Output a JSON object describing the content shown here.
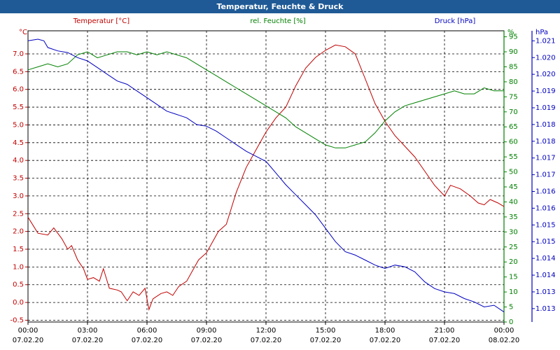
{
  "window": {
    "title": "Temperatur, Feuchte & Druck"
  },
  "colors": {
    "temperature": "#c00000",
    "humidity": "#008000",
    "pressure": "#0000c0",
    "axis": "#000000",
    "grid": "#000000"
  },
  "chart_data": {
    "type": "line",
    "title": "Temperatur, Feuchte & Druck",
    "x_ticks": [
      {
        "time": "00:00",
        "date": "07.02.20"
      },
      {
        "time": "03:00",
        "date": "07.02.20"
      },
      {
        "time": "06:00",
        "date": "07.02.20"
      },
      {
        "time": "09:00",
        "date": "07.02.20"
      },
      {
        "time": "12:00",
        "date": "07.02.20"
      },
      {
        "time": "15:00",
        "date": "07.02.20"
      },
      {
        "time": "18:00",
        "date": "07.02.20"
      },
      {
        "time": "21:00",
        "date": "07.02.20"
      },
      {
        "time": "00:00",
        "date": "08.02.20"
      }
    ],
    "x_range_hours": [
      0,
      24
    ],
    "axes": {
      "temperature": {
        "label": "Temperatur [°C]",
        "unit": "°C",
        "range": [
          -0.55,
          7.65
        ],
        "ticks": [
          "7.0",
          "6.5",
          "6.0",
          "5.5",
          "5.0",
          "4.5",
          "4.0",
          "3.5",
          "3.0",
          "2.5",
          "2.0",
          "1.5",
          "1.0",
          "0.5",
          "0.0",
          "-0.5"
        ]
      },
      "humidity": {
        "label": "rel. Feuchte [%]",
        "unit": "%",
        "range": [
          0,
          97
        ],
        "ticks": [
          "95",
          "90",
          "85",
          "80",
          "75",
          "70",
          "65",
          "60",
          "55",
          "50",
          "45",
          "40",
          "35",
          "30",
          "25",
          "20",
          "15",
          "10",
          "5",
          "0"
        ]
      },
      "pressure": {
        "label": "Druck [hPa]",
        "unit": "hPa",
        "range": [
          1012.6,
          1021.3
        ],
        "ticks": [
          "1.021",
          "1.020",
          "1.020",
          "1.019",
          "1.019",
          "1.018",
          "1.018",
          "1.017",
          "1.017",
          "1.016",
          "1.016",
          "1.015",
          "1.015",
          "1.014",
          "1.014",
          "1.013",
          "1.013"
        ]
      }
    },
    "series": [
      {
        "name": "Temperatur",
        "color": "#c00000",
        "points": [
          [
            0,
            2.4
          ],
          [
            0.5,
            1.95
          ],
          [
            1,
            1.9
          ],
          [
            1.3,
            2.1
          ],
          [
            1.7,
            1.8
          ],
          [
            2,
            1.5
          ],
          [
            2.2,
            1.6
          ],
          [
            2.5,
            1.2
          ],
          [
            2.8,
            0.95
          ],
          [
            3,
            0.65
          ],
          [
            3.3,
            0.7
          ],
          [
            3.6,
            0.6
          ],
          [
            3.8,
            0.95
          ],
          [
            4.1,
            0.4
          ],
          [
            4.5,
            0.35
          ],
          [
            4.7,
            0.3
          ],
          [
            5,
            0.05
          ],
          [
            5.3,
            0.3
          ],
          [
            5.6,
            0.2
          ],
          [
            5.9,
            0.4
          ],
          [
            6,
            0.1
          ],
          [
            6.1,
            -0.2
          ],
          [
            6.3,
            0.1
          ],
          [
            6.7,
            0.25
          ],
          [
            7,
            0.3
          ],
          [
            7.3,
            0.2
          ],
          [
            7.6,
            0.45
          ],
          [
            8,
            0.6
          ],
          [
            8.3,
            0.9
          ],
          [
            8.6,
            1.2
          ],
          [
            9,
            1.4
          ],
          [
            9.3,
            1.7
          ],
          [
            9.6,
            2.0
          ],
          [
            10,
            2.2
          ],
          [
            10.5,
            3.1
          ],
          [
            11,
            3.8
          ],
          [
            11.5,
            4.3
          ],
          [
            12,
            4.8
          ],
          [
            12.5,
            5.2
          ],
          [
            13,
            5.5
          ],
          [
            13.5,
            6.1
          ],
          [
            14,
            6.6
          ],
          [
            14.5,
            6.9
          ],
          [
            15,
            7.1
          ],
          [
            15.5,
            7.25
          ],
          [
            16,
            7.2
          ],
          [
            16.5,
            7.0
          ],
          [
            17,
            6.3
          ],
          [
            17.5,
            5.6
          ],
          [
            18,
            5.1
          ],
          [
            18.5,
            4.7
          ],
          [
            19,
            4.4
          ],
          [
            19.5,
            4.1
          ],
          [
            20,
            3.7
          ],
          [
            20.5,
            3.3
          ],
          [
            21,
            3.0
          ],
          [
            21.3,
            3.3
          ],
          [
            21.8,
            3.2
          ],
          [
            22.3,
            3.0
          ],
          [
            22.7,
            2.8
          ],
          [
            23,
            2.75
          ],
          [
            23.3,
            2.9
          ],
          [
            23.7,
            2.8
          ],
          [
            24,
            2.7
          ]
        ]
      },
      {
        "name": "rel. Feuchte",
        "color": "#008000",
        "points": [
          [
            0,
            84
          ],
          [
            0.5,
            85
          ],
          [
            1,
            86
          ],
          [
            1.5,
            85
          ],
          [
            2,
            86
          ],
          [
            2.5,
            89
          ],
          [
            3,
            90
          ],
          [
            3.5,
            88
          ],
          [
            4,
            89
          ],
          [
            4.5,
            90
          ],
          [
            5,
            90
          ],
          [
            5.5,
            89
          ],
          [
            6,
            90
          ],
          [
            6.5,
            89
          ],
          [
            7,
            90
          ],
          [
            7.5,
            89
          ],
          [
            8,
            88
          ],
          [
            8.5,
            86
          ],
          [
            9,
            84
          ],
          [
            9.5,
            82
          ],
          [
            10,
            80
          ],
          [
            10.5,
            78
          ],
          [
            11,
            76
          ],
          [
            11.5,
            74
          ],
          [
            12,
            72
          ],
          [
            12.5,
            70
          ],
          [
            13,
            68
          ],
          [
            13.5,
            65
          ],
          [
            14,
            63
          ],
          [
            14.5,
            61
          ],
          [
            15,
            59
          ],
          [
            15.5,
            58
          ],
          [
            16,
            58
          ],
          [
            16.5,
            59
          ],
          [
            17,
            60
          ],
          [
            17.5,
            63
          ],
          [
            18,
            67
          ],
          [
            18.5,
            70
          ],
          [
            19,
            72
          ],
          [
            19.5,
            73
          ],
          [
            20,
            74
          ],
          [
            20.5,
            75
          ],
          [
            21,
            76
          ],
          [
            21.5,
            77
          ],
          [
            22,
            76
          ],
          [
            22.5,
            76
          ],
          [
            23,
            78
          ],
          [
            23.5,
            77
          ],
          [
            24,
            77
          ]
        ]
      },
      {
        "name": "Druck",
        "color": "#0000c0",
        "points": [
          [
            0,
            1021.0
          ],
          [
            0.5,
            1021.05
          ],
          [
            0.8,
            1021.0
          ],
          [
            1,
            1020.8
          ],
          [
            1.5,
            1020.7
          ],
          [
            2,
            1020.65
          ],
          [
            2.5,
            1020.5
          ],
          [
            3,
            1020.4
          ],
          [
            3.5,
            1020.2
          ],
          [
            4,
            1020.0
          ],
          [
            4.5,
            1019.8
          ],
          [
            5,
            1019.7
          ],
          [
            5.5,
            1019.5
          ],
          [
            6,
            1019.3
          ],
          [
            6.5,
            1019.1
          ],
          [
            7,
            1018.9
          ],
          [
            7.5,
            1018.8
          ],
          [
            8,
            1018.7
          ],
          [
            8.5,
            1018.5
          ],
          [
            9,
            1018.45
          ],
          [
            9.5,
            1018.3
          ],
          [
            10,
            1018.1
          ],
          [
            10.5,
            1017.9
          ],
          [
            11,
            1017.7
          ],
          [
            11.5,
            1017.55
          ],
          [
            12,
            1017.4
          ],
          [
            12.5,
            1017.05
          ],
          [
            13,
            1016.7
          ],
          [
            13.5,
            1016.4
          ],
          [
            14,
            1016.1
          ],
          [
            14.5,
            1015.8
          ],
          [
            15,
            1015.4
          ],
          [
            15.5,
            1015.0
          ],
          [
            16,
            1014.7
          ],
          [
            16.5,
            1014.6
          ],
          [
            17,
            1014.45
          ],
          [
            17.5,
            1014.3
          ],
          [
            18,
            1014.2
          ],
          [
            18.5,
            1014.3
          ],
          [
            19,
            1014.25
          ],
          [
            19.5,
            1014.1
          ],
          [
            20,
            1013.8
          ],
          [
            20.5,
            1013.6
          ],
          [
            21,
            1013.5
          ],
          [
            21.5,
            1013.45
          ],
          [
            22,
            1013.3
          ],
          [
            22.5,
            1013.2
          ],
          [
            23,
            1013.05
          ],
          [
            23.5,
            1013.1
          ],
          [
            24,
            1012.9
          ]
        ]
      }
    ],
    "grid": true,
    "legend": "top"
  }
}
